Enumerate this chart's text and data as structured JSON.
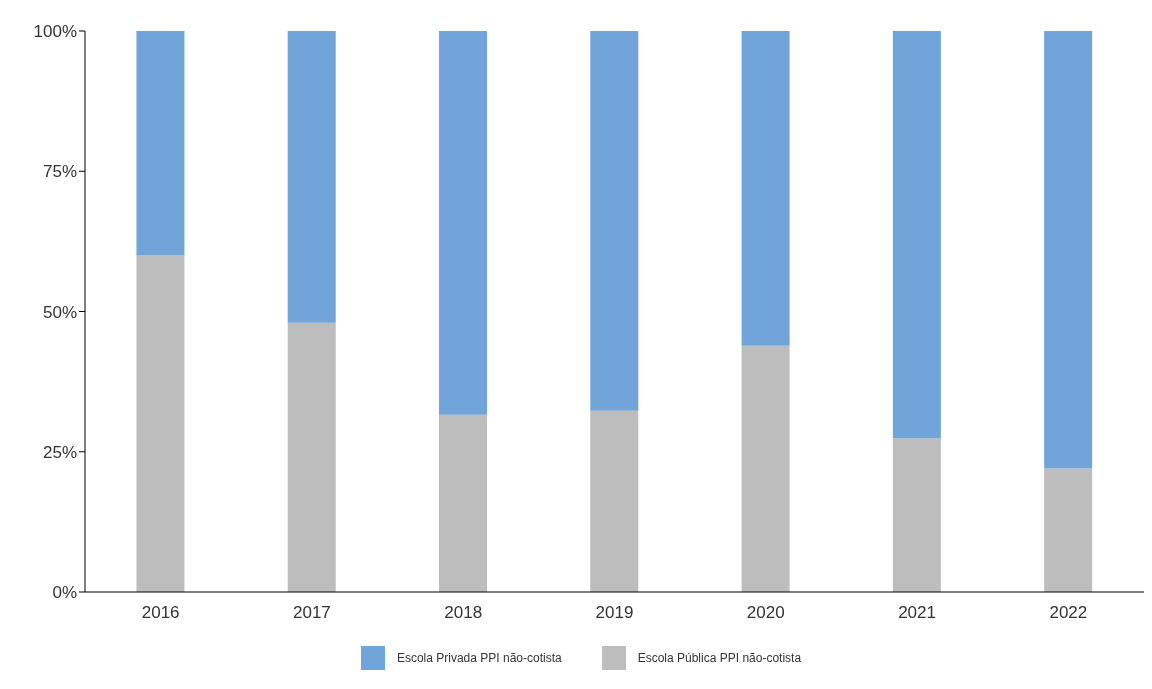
{
  "chart_data": {
    "type": "bar",
    "stacked": true,
    "categories": [
      "2016",
      "2017",
      "2018",
      "2019",
      "2020",
      "2021",
      "2022"
    ],
    "series": [
      {
        "name": "Escola Pública PPI não-cotista",
        "color": "#bdbdbd",
        "values": [
          60,
          48,
          31.6,
          32.3,
          43.9,
          27.4,
          22
        ]
      },
      {
        "name": "Escola Privada PPI não-cotista",
        "color": "#71a5d9",
        "values": [
          40,
          52,
          68.4,
          67.7,
          56.1,
          72.6,
          78
        ]
      }
    ],
    "ylim": [
      0,
      100
    ],
    "yticks": [
      {
        "value": 0,
        "label": "0%"
      },
      {
        "value": 25,
        "label": "25%"
      },
      {
        "value": 50,
        "label": "50%"
      },
      {
        "value": 75,
        "label": "75%"
      },
      {
        "value": 100,
        "label": "100%"
      }
    ],
    "grid": false,
    "legend": "bottom"
  }
}
